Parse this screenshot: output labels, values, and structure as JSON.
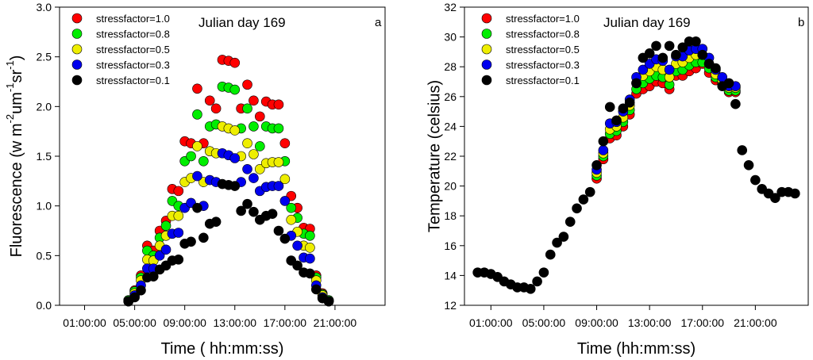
{
  "chart_data": [
    {
      "type": "scatter",
      "panel": "a",
      "title": "Julian day 169",
      "ylabel": "Fluorescence (w m-2um-1sr-1)",
      "ylabel_parts": [
        "Fluorescence (w m",
        "-2",
        "um",
        "-1",
        "sr",
        "-1",
        ")"
      ],
      "xlabel": "Time ( hh:mm:ss)",
      "xlim": [
        -1,
        25
      ],
      "ylim": [
        0,
        3
      ],
      "xticks": [
        1,
        5,
        9,
        13,
        17,
        21
      ],
      "xtick_labels": [
        "01:00:00",
        "05:00:00",
        "09:00:00",
        "13:00:00",
        "17:00:00",
        "21:00:00"
      ],
      "yticks": [
        0,
        0.5,
        1,
        1.5,
        2,
        2.5,
        3
      ],
      "ytick_labels": [
        "0.0",
        "0.5",
        "1.0",
        "1.5",
        "2.0",
        "2.5",
        "3.0"
      ],
      "legend_position": "top-left",
      "x": [
        4.5,
        5.0,
        5.5,
        6.0,
        6.5,
        7.0,
        7.5,
        8.0,
        8.5,
        9.0,
        9.5,
        10.0,
        10.5,
        11.0,
        11.5,
        12.0,
        12.5,
        13.0,
        13.5,
        14.0,
        14.5,
        15.0,
        15.5,
        16.0,
        16.5,
        17.0,
        17.5,
        18.0,
        18.5,
        19.0,
        19.5,
        20.0,
        20.5
      ],
      "series": [
        {
          "name": "stressfactor=1.0",
          "color": "#ff0000",
          "values": [
            0.05,
            0.15,
            0.3,
            0.6,
            0.55,
            0.75,
            0.85,
            1.17,
            1.15,
            1.65,
            1.63,
            2.18,
            1.63,
            2.06,
            1.98,
            2.47,
            2.46,
            2.44,
            1.98,
            2.22,
            2.06,
            1.9,
            2.05,
            2.02,
            2.02,
            1.63,
            1.1,
            0.98,
            0.78,
            0.77,
            0.3,
            0.12,
            0.05
          ]
        },
        {
          "name": "stressfactor=0.8",
          "color": "#00ee00",
          "values": [
            0.05,
            0.14,
            0.28,
            0.55,
            0.5,
            0.68,
            0.8,
            1.05,
            1.0,
            1.45,
            1.5,
            1.92,
            1.45,
            1.8,
            1.82,
            2.2,
            2.19,
            2.17,
            1.78,
            1.98,
            1.8,
            1.6,
            1.8,
            1.78,
            1.78,
            1.45,
            0.98,
            0.88,
            0.72,
            0.7,
            0.28,
            0.11,
            0.05
          ]
        },
        {
          "name": "stressfactor=0.5",
          "color": "#eeee00",
          "values": [
            0.04,
            0.12,
            0.25,
            0.46,
            0.45,
            0.6,
            0.7,
            0.9,
            0.9,
            1.24,
            1.28,
            1.6,
            1.24,
            1.55,
            1.53,
            1.8,
            1.78,
            1.76,
            1.5,
            1.63,
            1.52,
            1.37,
            1.43,
            1.44,
            1.44,
            1.27,
            0.86,
            0.74,
            0.6,
            0.58,
            0.25,
            0.1,
            0.04
          ]
        },
        {
          "name": "stressfactor=0.3",
          "color": "#0000ee",
          "values": [
            0.04,
            0.1,
            0.2,
            0.37,
            0.37,
            0.5,
            0.56,
            0.72,
            0.73,
            0.98,
            1.03,
            1.3,
            1.0,
            1.26,
            1.24,
            1.53,
            1.51,
            1.48,
            1.24,
            1.37,
            1.28,
            1.15,
            1.19,
            1.2,
            1.2,
            1.05,
            0.7,
            0.6,
            0.48,
            0.47,
            0.2,
            0.08,
            0.04
          ]
        },
        {
          "name": "stressfactor=0.1",
          "color": "#000000",
          "values": [
            0.04,
            0.08,
            0.15,
            0.28,
            0.29,
            0.36,
            0.4,
            0.45,
            0.46,
            0.62,
            0.64,
            0.98,
            0.68,
            0.82,
            0.84,
            1.22,
            1.21,
            1.2,
            0.95,
            1.02,
            0.94,
            0.86,
            0.9,
            0.92,
            0.75,
            0.67,
            0.45,
            0.4,
            0.33,
            0.32,
            0.16,
            0.07,
            0.04
          ]
        }
      ]
    },
    {
      "type": "scatter",
      "panel": "b",
      "title": "Julian day 169",
      "ylabel": "Temperature (celsius)",
      "xlabel": "Time (hh:mm:ss)",
      "xlim": [
        -1,
        25
      ],
      "ylim": [
        12,
        32
      ],
      "xticks": [
        1,
        5,
        9,
        13,
        17,
        21
      ],
      "xtick_labels": [
        "01:00:00",
        "05:00:00",
        "09:00:00",
        "13:00:00",
        "17:00:00",
        "21:00:00"
      ],
      "yticks": [
        12,
        14,
        16,
        18,
        20,
        22,
        24,
        26,
        28,
        30,
        32
      ],
      "ytick_labels": [
        "12",
        "14",
        "16",
        "18",
        "20",
        "22",
        "24",
        "26",
        "28",
        "30",
        "32"
      ],
      "legend_position": "top-left",
      "series": [
        {
          "name": "stressfactor=1.0",
          "color": "#ff0000",
          "x": [
            9.0,
            9.5,
            10.0,
            10.5,
            11.0,
            11.5,
            12.0,
            12.5,
            13.0,
            13.5,
            14.0,
            14.5,
            15.0,
            15.5,
            16.0,
            16.5,
            17.0,
            17.5,
            18.0,
            18.5,
            19.0,
            19.5
          ],
          "values": [
            20.5,
            21.8,
            23.2,
            23.4,
            24.0,
            24.8,
            26.2,
            26.5,
            26.7,
            27.0,
            26.9,
            26.5,
            27.4,
            27.4,
            27.7,
            27.9,
            28.2,
            27.6,
            27.1,
            26.8,
            26.3,
            26.3
          ]
        },
        {
          "name": "stressfactor=0.8",
          "color": "#00ee00",
          "x": [
            9.0,
            9.5,
            10.0,
            10.5,
            11.0,
            11.5,
            12.0,
            12.5,
            13.0,
            13.5,
            14.0,
            14.5,
            15.0,
            15.5,
            16.0,
            16.5,
            17.0,
            17.5,
            18.0,
            18.5,
            19.0,
            19.5
          ],
          "values": [
            20.7,
            22.0,
            23.5,
            23.7,
            24.3,
            25.1,
            26.5,
            26.9,
            27.2,
            27.4,
            27.3,
            26.8,
            27.7,
            27.8,
            28.1,
            28.3,
            28.3,
            27.9,
            27.3,
            26.9,
            26.4,
            26.4
          ]
        },
        {
          "name": "stressfactor=0.5",
          "color": "#eeee00",
          "x": [
            9.0,
            9.5,
            10.0,
            10.5,
            11.0,
            11.5,
            12.0,
            12.5,
            13.0,
            13.5,
            14.0,
            14.5,
            15.0,
            15.5,
            16.0,
            16.5,
            17.0,
            17.5,
            18.0,
            18.5,
            19.0,
            19.5
          ],
          "values": [
            20.9,
            22.2,
            23.8,
            24.0,
            24.6,
            25.4,
            26.9,
            27.4,
            27.7,
            28.0,
            27.8,
            27.3,
            28.2,
            28.3,
            28.6,
            28.8,
            28.8,
            28.2,
            27.5,
            27.1,
            26.6,
            26.6
          ]
        },
        {
          "name": "stressfactor=0.3",
          "color": "#0000ee",
          "x": [
            9.0,
            9.5,
            10.0,
            10.5,
            11.0,
            11.5,
            12.0,
            12.5,
            13.0,
            13.5,
            14.0,
            14.5,
            15.0,
            15.5,
            16.0,
            16.5,
            17.0,
            17.5,
            18.0,
            18.5,
            19.0,
            19.5
          ],
          "values": [
            21.1,
            22.4,
            24.2,
            24.3,
            25.0,
            25.8,
            27.3,
            27.8,
            28.2,
            28.5,
            28.4,
            27.8,
            28.7,
            28.7,
            29.1,
            29.2,
            29.2,
            28.6,
            27.8,
            27.3,
            26.7,
            26.7
          ]
        },
        {
          "name": "stressfactor=0.1",
          "color": "#000000",
          "x": [
            0.0,
            0.5,
            1.0,
            1.5,
            2.0,
            2.5,
            3.0,
            3.5,
            4.0,
            4.5,
            5.0,
            5.5,
            6.0,
            6.5,
            7.0,
            7.5,
            8.0,
            8.5,
            9.0,
            9.5,
            10.0,
            10.5,
            11.0,
            11.5,
            12.0,
            12.5,
            13.0,
            13.5,
            14.0,
            14.5,
            15.0,
            15.5,
            16.0,
            16.5,
            17.0,
            17.5,
            18.0,
            18.5,
            19.0,
            19.5,
            20.0,
            20.5,
            21.0,
            21.5,
            22.0,
            22.5,
            23.0,
            23.5,
            24.0
          ],
          "values": [
            14.2,
            14.2,
            14.1,
            13.9,
            13.6,
            13.4,
            13.2,
            13.2,
            13.1,
            13.6,
            14.2,
            15.4,
            16.2,
            16.6,
            17.6,
            18.5,
            19.1,
            19.6,
            21.4,
            23.0,
            25.3,
            24.4,
            25.2,
            25.6,
            26.9,
            28.6,
            28.9,
            29.4,
            28.6,
            29.4,
            28.8,
            29.3,
            29.7,
            29.7,
            28.8,
            28.2,
            27.9,
            26.7,
            26.9,
            25.5,
            22.4,
            21.4,
            20.4,
            19.8,
            19.5,
            19.2,
            19.6,
            19.6,
            19.5
          ]
        }
      ]
    }
  ]
}
